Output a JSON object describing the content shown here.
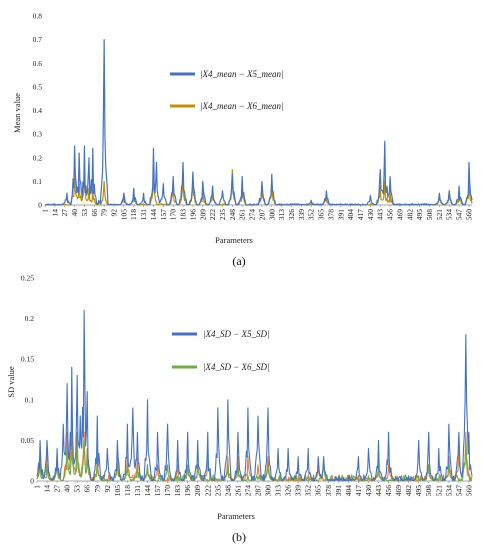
{
  "chart_data": [
    {
      "panel": "(a)",
      "type": "line",
      "xlabel": "Parameters",
      "ylabel": "Mean value",
      "ylim": [
        0,
        0.8
      ],
      "yticks": [
        "0",
        "0.1",
        "0.2",
        "0.3",
        "0.4",
        "0.5",
        "0.6",
        "0.7",
        "0.8"
      ],
      "xticks": [
        "1",
        "14",
        "27",
        "40",
        "53",
        "66",
        "79",
        "92",
        "105",
        "118",
        "131",
        "144",
        "157",
        "170",
        "183",
        "196",
        "209",
        "222",
        "235",
        "248",
        "261",
        "274",
        "287",
        "300",
        "313",
        "326",
        "339",
        "352",
        "365",
        "378",
        "391",
        "404",
        "417",
        "430",
        "443",
        "456",
        "469",
        "482",
        "495",
        "508",
        "521",
        "534",
        "547",
        "560"
      ],
      "grid": false,
      "legend_position": "upper-center",
      "series": [
        {
          "name": "|X4_mean − X5_mean|",
          "color": "#4472c4",
          "peaks": [
            [
              30,
              0.05
            ],
            [
              40,
              0.25
            ],
            [
              46,
              0.22
            ],
            [
              53,
              0.25
            ],
            [
              59,
              0.2
            ],
            [
              64,
              0.24
            ],
            [
              72,
              0.02
            ],
            [
              79,
              0.7
            ],
            [
              105,
              0.05
            ],
            [
              118,
              0.07
            ],
            [
              131,
              0.05
            ],
            [
              144,
              0.24
            ],
            [
              148,
              0.18
            ],
            [
              157,
              0.09
            ],
            [
              170,
              0.12
            ],
            [
              183,
              0.18
            ],
            [
              196,
              0.14
            ],
            [
              209,
              0.1
            ],
            [
              222,
              0.08
            ],
            [
              235,
              0.06
            ],
            [
              248,
              0.13
            ],
            [
              261,
              0.12
            ],
            [
              287,
              0.1
            ],
            [
              300,
              0.13
            ],
            [
              352,
              0.02
            ],
            [
              372,
              0.06
            ],
            [
              430,
              0.04
            ],
            [
              443,
              0.15
            ],
            [
              449,
              0.27
            ],
            [
              456,
              0.12
            ],
            [
              521,
              0.05
            ],
            [
              534,
              0.06
            ],
            [
              547,
              0.08
            ],
            [
              560,
              0.18
            ]
          ]
        },
        {
          "name": "|X4_mean − X6_mean|",
          "color": "#bf9000",
          "peaks": [
            [
              40,
              0.13
            ],
            [
              46,
              0.1
            ],
            [
              53,
              0.12
            ],
            [
              59,
              0.07
            ],
            [
              64,
              0.06
            ],
            [
              79,
              0.1
            ],
            [
              105,
              0.05
            ],
            [
              118,
              0.04
            ],
            [
              144,
              0.1
            ],
            [
              170,
              0.08
            ],
            [
              183,
              0.11
            ],
            [
              196,
              0.09
            ],
            [
              209,
              0.06
            ],
            [
              222,
              0.07
            ],
            [
              248,
              0.15
            ],
            [
              261,
              0.06
            ],
            [
              287,
              0.08
            ],
            [
              300,
              0.1
            ],
            [
              372,
              0.04
            ],
            [
              443,
              0.08
            ],
            [
              449,
              0.1
            ],
            [
              456,
              0.06
            ],
            [
              521,
              0.04
            ],
            [
              534,
              0.06
            ],
            [
              547,
              0.04
            ],
            [
              560,
              0.09
            ]
          ]
        }
      ]
    },
    {
      "panel": "(b)",
      "type": "line",
      "xlabel": "Parameters",
      "ylabel": "SD value",
      "ylim": [
        0,
        0.25
      ],
      "yticks": [
        "0",
        "0.05",
        "0.1",
        "0.15",
        "0.2",
        "0.25"
      ],
      "xticks": [
        "1",
        "14",
        "27",
        "40",
        "53",
        "66",
        "79",
        "92",
        "105",
        "118",
        "131",
        "144",
        "157",
        "170",
        "183",
        "196",
        "209",
        "222",
        "235",
        "248",
        "261",
        "274",
        "287",
        "300",
        "313",
        "326",
        "339",
        "352",
        "365",
        "378",
        "391",
        "404",
        "417",
        "430",
        "443",
        "456",
        "469",
        "482",
        "495",
        "508",
        "521",
        "534",
        "547",
        "560"
      ],
      "grid": false,
      "legend_position": "upper-center",
      "series": [
        {
          "name": "|X4_SD − X5_SD|",
          "color": "#4472c4",
          "peaks": [
            [
              5,
              0.05
            ],
            [
              14,
              0.05
            ],
            [
              27,
              0.04
            ],
            [
              35,
              0.07
            ],
            [
              40,
              0.12
            ],
            [
              46,
              0.14
            ],
            [
              53,
              0.13
            ],
            [
              57,
              0.08
            ],
            [
              62,
              0.21
            ],
            [
              66,
              0.11
            ],
            [
              79,
              0.08
            ],
            [
              92,
              0.04
            ],
            [
              105,
              0.05
            ],
            [
              118,
              0.07
            ],
            [
              125,
              0.09
            ],
            [
              131,
              0.06
            ],
            [
              144,
              0.1
            ],
            [
              157,
              0.06
            ],
            [
              170,
              0.07
            ],
            [
              183,
              0.05
            ],
            [
              196,
              0.06
            ],
            [
              209,
              0.05
            ],
            [
              222,
              0.06
            ],
            [
              235,
              0.09
            ],
            [
              248,
              0.1
            ],
            [
              261,
              0.06
            ],
            [
              274,
              0.09
            ],
            [
              287,
              0.08
            ],
            [
              300,
              0.09
            ],
            [
              313,
              0.04
            ],
            [
              326,
              0.04
            ],
            [
              339,
              0.03
            ],
            [
              352,
              0.04
            ],
            [
              365,
              0.03
            ],
            [
              372,
              0.03
            ],
            [
              417,
              0.03
            ],
            [
              430,
              0.04
            ],
            [
              443,
              0.05
            ],
            [
              456,
              0.06
            ],
            [
              495,
              0.05
            ],
            [
              508,
              0.06
            ],
            [
              521,
              0.04
            ],
            [
              534,
              0.07
            ],
            [
              547,
              0.06
            ],
            [
              556,
              0.18
            ],
            [
              560,
              0.06
            ]
          ]
        },
        {
          "name": "|X4_SD − X6_SD|",
          "color": "#70ad47",
          "peaks": [
            [
              5,
              0.02
            ],
            [
              14,
              0.02
            ],
            [
              27,
              0.02
            ],
            [
              40,
              0.04
            ],
            [
              46,
              0.04
            ],
            [
              53,
              0.06
            ],
            [
              62,
              0.05
            ],
            [
              66,
              0.03
            ],
            [
              79,
              0.02
            ],
            [
              105,
              0.03
            ],
            [
              118,
              0.02
            ],
            [
              131,
              0.02
            ],
            [
              144,
              0.02
            ],
            [
              170,
              0.02
            ],
            [
              196,
              0.02
            ],
            [
              209,
              0.02
            ],
            [
              248,
              0.02
            ],
            [
              261,
              0.02
            ],
            [
              300,
              0.02
            ],
            [
              372,
              0.02
            ],
            [
              443,
              0.02
            ],
            [
              508,
              0.02
            ],
            [
              534,
              0.02
            ],
            [
              556,
              0.05
            ]
          ]
        },
        {
          "name": "",
          "color": "#ed7d31",
          "peaks": [
            [
              5,
              0.03
            ],
            [
              14,
              0.04
            ],
            [
              27,
              0.03
            ],
            [
              40,
              0.06
            ],
            [
              46,
              0.07
            ],
            [
              53,
              0.05
            ],
            [
              62,
              0.06
            ],
            [
              66,
              0.04
            ],
            [
              79,
              0.03
            ],
            [
              105,
              0.03
            ],
            [
              118,
              0.03
            ],
            [
              131,
              0.03
            ],
            [
              144,
              0.02
            ],
            [
              157,
              0.02
            ],
            [
              183,
              0.02
            ],
            [
              196,
              0.02
            ],
            [
              209,
              0.02
            ],
            [
              222,
              0.03
            ],
            [
              248,
              0.03
            ],
            [
              261,
              0.03
            ],
            [
              274,
              0.03
            ],
            [
              287,
              0.02
            ],
            [
              300,
              0.03
            ],
            [
              365,
              0.02
            ],
            [
              443,
              0.02
            ],
            [
              456,
              0.02
            ],
            [
              508,
              0.02
            ],
            [
              534,
              0.03
            ],
            [
              547,
              0.04
            ],
            [
              556,
              0.06
            ]
          ]
        }
      ]
    }
  ]
}
